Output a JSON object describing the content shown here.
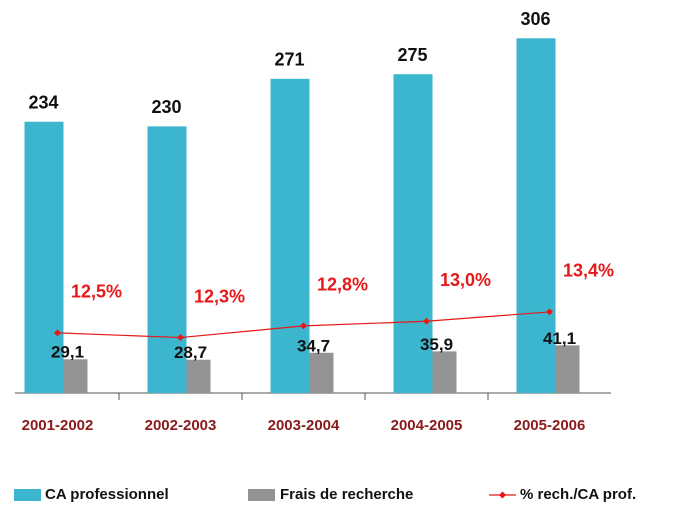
{
  "chart_data": {
    "type": "bar",
    "categories": [
      "2001-2002",
      "2002-2003",
      "2003-2004",
      "2004-2005",
      "2005-2006"
    ],
    "series": [
      {
        "name": "CA professionnel",
        "type": "bar",
        "color": "#3cb6cf",
        "values": [
          234,
          230,
          271,
          275,
          306
        ]
      },
      {
        "name": "Frais de recherche",
        "type": "bar",
        "color": "#939393",
        "values": [
          29.1,
          28.7,
          34.7,
          35.9,
          41.1
        ],
        "value_labels": [
          "29,1",
          "28,7",
          "34,7",
          "35,9",
          "41,1"
        ]
      },
      {
        "name": "% rech./CA prof.",
        "type": "line",
        "axis": "y2",
        "color": "#e81818",
        "values": [
          12.5,
          12.3,
          12.8,
          13.0,
          13.4
        ],
        "value_labels": [
          "12,5%",
          "12,3%",
          "12,8%",
          "13,0%",
          "13,4%"
        ]
      }
    ],
    "ylim": [
      0,
      339
    ],
    "y2lim": [
      9.92,
      26.79
    ],
    "legend": "bottom"
  }
}
